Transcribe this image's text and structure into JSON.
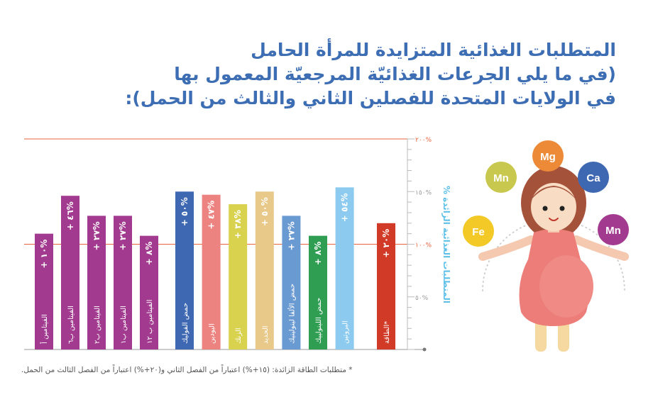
{
  "title": {
    "lines": [
      "المتطلبات الغذائية المتزايدة للمرأة الحامل",
      "(في ما يلي الجرعات الغذائيّة المرجعيّة المعمول بها",
      "في الولايات المتحدة للفصلين الثاني والثالث من الحمل):"
    ]
  },
  "footnote": "* متطلبات الطاقة الزائدة: (١٥+%) اعتباراً من الفصل الثاني و(٢٠+%) اعتباراً من الفصل الثالث من الحمل.",
  "colors": {
    "title": "#3d6db3",
    "ref_line": "#e8643c",
    "axis": "#999999",
    "ylabel": "#5ec0e8"
  },
  "chart_data": {
    "type": "bar",
    "ylabel": "% المتطلبات الغذائية الزائدة",
    "ylim": [
      0,
      200
    ],
    "yticks": [
      {
        "value": 50,
        "label": "٥٠%",
        "color": "#999999"
      },
      {
        "value": 100,
        "label": "١٠٠%",
        "color": "#e8643c"
      },
      {
        "value": 150,
        "label": "١٥٠%",
        "color": "#999999"
      },
      {
        "value": 200,
        "label": "٢٠٠%",
        "color": "#e8643c"
      }
    ],
    "reference_lines": [
      100,
      200
    ],
    "categories": [
      "الفيتامين أ",
      "الفيتامين ب٦",
      "الفيتامين ب٢",
      "الفيتامين ب١",
      "الفيتامين ب ١٢",
      "حمض الفوليك",
      "اليودين",
      "الزنك",
      "الحديد",
      "حمض الألفا لينولينيك",
      "حمض اللينولييك",
      "البروتين",
      "الطاقة*"
    ],
    "values": [
      110,
      146,
      127,
      127,
      108,
      150,
      147,
      138,
      150,
      127,
      108,
      154,
      120
    ],
    "labels": [
      "+ ١٠%",
      "+ ٤٦%",
      "+ ٢٧%",
      "+ ٢٧%",
      "+ ٨%",
      "+ ٥٠%",
      "+ ٤٧%",
      "+ ٣٨%",
      "+ ٥٠%",
      "+ ٢٧%",
      "+ ٨%",
      "+ ٥٤%",
      "+ ٢٠%"
    ],
    "colors": [
      "#a23a90",
      "#a23a90",
      "#a23a90",
      "#a23a90",
      "#a23a90",
      "#3f68b2",
      "#ec8380",
      "#d8d24e",
      "#e8c98a",
      "#6a9ad2",
      "#2f9e52",
      "#8ccbef",
      "#d13a27"
    ]
  },
  "illustration": {
    "nutrients": [
      "Mg",
      "Mn",
      "Ca",
      "Fe",
      "Mn"
    ],
    "nutrient_colors": [
      "#ec8a37",
      "#c9c84e",
      "#3f68b2",
      "#f3c928",
      "#a23a90"
    ]
  }
}
